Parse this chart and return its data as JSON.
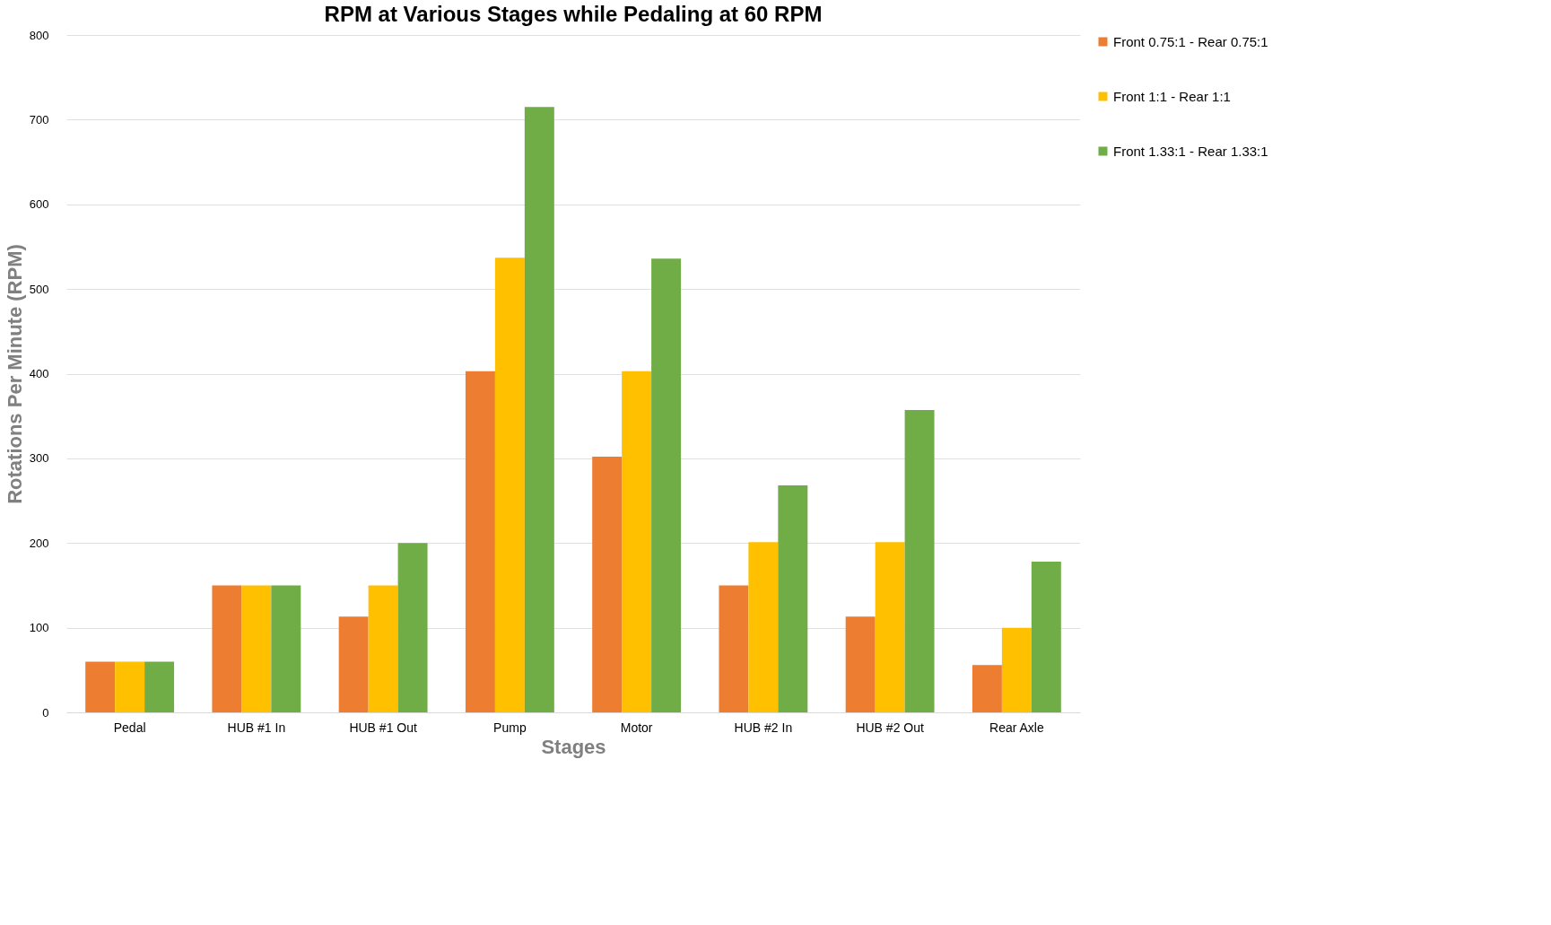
{
  "chart_data": {
    "type": "bar",
    "title": "RPM at Various Stages while Pedaling at 60 RPM",
    "xlabel": "Stages",
    "ylabel": "Rotations Per Minute (RPM)",
    "categories": [
      "Pedal",
      "HUB #1 In",
      "HUB #1 Out",
      "Pump",
      "Motor",
      "HUB #2 In",
      "HUB #2 Out",
      "Rear Axle"
    ],
    "series": [
      {
        "name": "Front 0.75:1  -  Rear 0.75:1",
        "color": "#ed7d31",
        "values": [
          60,
          150,
          113,
          403,
          302,
          150,
          113,
          56
        ]
      },
      {
        "name": "Front 1:1  -  Rear 1:1",
        "color": "#ffc000",
        "values": [
          60,
          150,
          150,
          537,
          403,
          201,
          201,
          100
        ]
      },
      {
        "name": "Front 1.33:1  -  Rear 1.33:1",
        "color": "#70ad47",
        "values": [
          60,
          150,
          200,
          715,
          536,
          268,
          357,
          178
        ]
      }
    ],
    "ylim": [
      0,
      800
    ],
    "yticks": [
      0,
      100,
      200,
      300,
      400,
      500,
      600,
      700,
      800
    ],
    "grid": "y",
    "legend": "right"
  }
}
